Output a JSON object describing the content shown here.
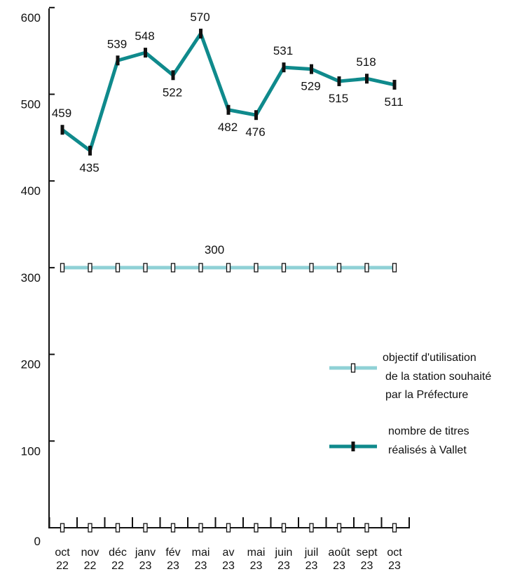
{
  "chart_data": {
    "type": "line",
    "categories": [
      [
        "oct",
        "22"
      ],
      [
        "nov",
        "22"
      ],
      [
        "déc",
        "22"
      ],
      [
        "janv",
        "23"
      ],
      [
        "fév",
        "23"
      ],
      [
        "mai",
        "23"
      ],
      [
        "av",
        "23"
      ],
      [
        "mai",
        "23"
      ],
      [
        "juin",
        "23"
      ],
      [
        "juil",
        "23"
      ],
      [
        "août",
        "23"
      ],
      [
        "sept",
        "23"
      ],
      [
        "oct",
        "23"
      ]
    ],
    "y_ticks": [
      "0",
      "100",
      "200",
      "300",
      "400",
      "500",
      "600"
    ],
    "ylim": [
      0,
      600
    ],
    "grid": false,
    "legend_position": "right",
    "series": [
      {
        "name": "nombre de titres réalisés à Vallet",
        "legend_lines": [
          "nombre de titres",
          "réalisés à Vallet"
        ],
        "color": "#0f8a8c",
        "values": [
          459,
          435,
          539,
          548,
          522,
          570,
          482,
          476,
          531,
          529,
          515,
          518,
          511
        ],
        "labels": [
          "459",
          "435",
          "539",
          "548",
          "522",
          "570",
          "482",
          "476",
          "531",
          "529",
          "515",
          "518",
          "511"
        ]
      },
      {
        "name": "objectif d'utilisation de la station souhaité par la Préfecture",
        "legend_lines": [
          "objectif d'utilisation",
          "de la station souhaité",
          "par la Préfecture"
        ],
        "color": "#8fd1d6",
        "values": [
          300,
          300,
          300,
          300,
          300,
          300,
          300,
          300,
          300,
          300,
          300,
          300,
          300
        ],
        "labels": [
          "300"
        ]
      }
    ]
  }
}
